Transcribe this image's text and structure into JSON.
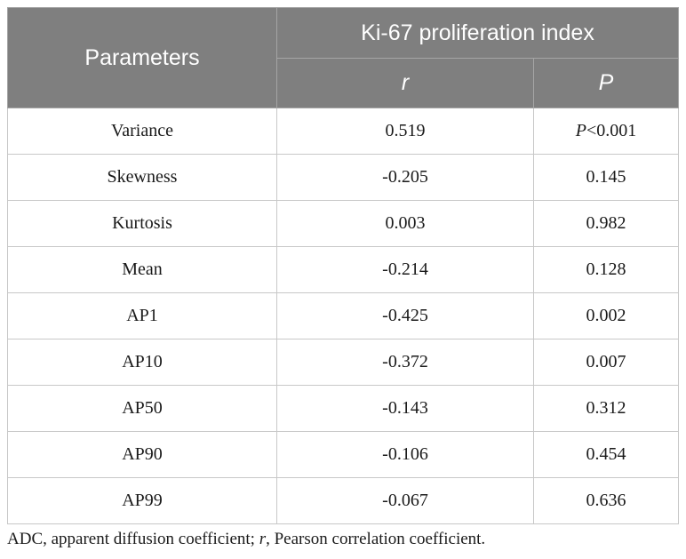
{
  "table": {
    "header": {
      "parameters": "Parameters",
      "group": "Ki-67 proliferation index",
      "r": "r",
      "p": "P"
    },
    "rows": [
      {
        "parameter": "Variance",
        "r": "0.519",
        "p_prefix": "P",
        "p": "<0.001"
      },
      {
        "parameter": "Skewness",
        "r": "-0.205",
        "p_prefix": "",
        "p": "0.145"
      },
      {
        "parameter": "Kurtosis",
        "r": "0.003",
        "p_prefix": "",
        "p": "0.982"
      },
      {
        "parameter": "Mean",
        "r": "-0.214",
        "p_prefix": "",
        "p": "0.128"
      },
      {
        "parameter": "AP1",
        "r": "-0.425",
        "p_prefix": "",
        "p": "0.002"
      },
      {
        "parameter": "AP10",
        "r": "-0.372",
        "p_prefix": "",
        "p": "0.007"
      },
      {
        "parameter": "AP50",
        "r": "-0.143",
        "p_prefix": "",
        "p": "0.312"
      },
      {
        "parameter": "AP90",
        "r": "-0.106",
        "p_prefix": "",
        "p": "0.454"
      },
      {
        "parameter": "AP99",
        "r": "-0.067",
        "p_prefix": "",
        "p": "0.636"
      }
    ]
  },
  "footnote": {
    "part1": "ADC, apparent diffusion coefficient; ",
    "r": "r",
    "part2": ", Pearson correlation coefficient."
  },
  "colors": {
    "header_bg": "#7f7f7f",
    "header_text": "#ffffff",
    "border": "#c8c8c8"
  }
}
